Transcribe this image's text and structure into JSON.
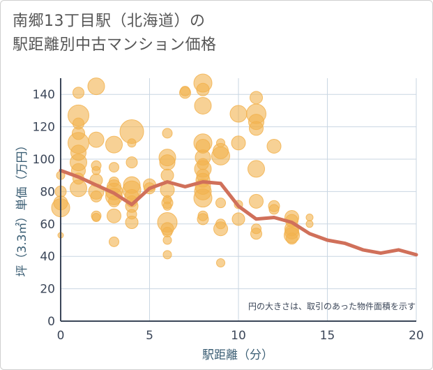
{
  "title_line1": "南郷13丁目駅（北海道）の",
  "title_line2": "駅距離別中古マンション価格",
  "note": "円の大きさは、取引のあった物件面積を示す",
  "colors": {
    "bubble": "#f2b24e",
    "line": "#d0705a",
    "grid": "#c9d6e2",
    "axis": "#3b4658"
  },
  "chart_data": {
    "type": "scatter",
    "xlabel": "駅距離（分）",
    "ylabel": "坪（3.3㎡）単価（万円）",
    "xlim": [
      0,
      20
    ],
    "ylim": [
      0,
      150
    ],
    "x_ticks": [
      0,
      5,
      10,
      15,
      20
    ],
    "y_ticks": [
      0,
      20,
      40,
      60,
      80,
      100,
      120,
      140
    ],
    "grid": true,
    "bubbles": [
      {
        "x": 0,
        "y": 53,
        "r": 4
      },
      {
        "x": 0,
        "y": 70,
        "r": 13
      },
      {
        "x": 0,
        "y": 73,
        "r": 10
      },
      {
        "x": 0,
        "y": 80,
        "r": 8
      },
      {
        "x": 0,
        "y": 90,
        "r": 6
      },
      {
        "x": 1,
        "y": 141,
        "r": 8
      },
      {
        "x": 1,
        "y": 127,
        "r": 15
      },
      {
        "x": 1,
        "y": 122,
        "r": 8
      },
      {
        "x": 1,
        "y": 116,
        "r": 9
      },
      {
        "x": 1,
        "y": 110,
        "r": 15
      },
      {
        "x": 1,
        "y": 104,
        "r": 11
      },
      {
        "x": 1,
        "y": 98,
        "r": 12
      },
      {
        "x": 1,
        "y": 93,
        "r": 10
      },
      {
        "x": 1,
        "y": 88,
        "r": 8
      },
      {
        "x": 1,
        "y": 82,
        "r": 12
      },
      {
        "x": 2,
        "y": 145,
        "r": 12
      },
      {
        "x": 2,
        "y": 112,
        "r": 11
      },
      {
        "x": 2,
        "y": 96,
        "r": 7
      },
      {
        "x": 2,
        "y": 93,
        "r": 6
      },
      {
        "x": 2,
        "y": 87,
        "r": 9
      },
      {
        "x": 2,
        "y": 80,
        "r": 11
      },
      {
        "x": 2,
        "y": 77,
        "r": 8
      },
      {
        "x": 2,
        "y": 65,
        "r": 7
      },
      {
        "x": 2,
        "y": 64,
        "r": 6
      },
      {
        "x": 3,
        "y": 109,
        "r": 12
      },
      {
        "x": 3,
        "y": 95,
        "r": 7
      },
      {
        "x": 3,
        "y": 86,
        "r": 7
      },
      {
        "x": 3,
        "y": 83,
        "r": 10
      },
      {
        "x": 3,
        "y": 80,
        "r": 12
      },
      {
        "x": 3,
        "y": 77,
        "r": 12
      },
      {
        "x": 3,
        "y": 74,
        "r": 8
      },
      {
        "x": 3,
        "y": 65,
        "r": 10
      },
      {
        "x": 3,
        "y": 49,
        "r": 7
      },
      {
        "x": 4,
        "y": 117,
        "r": 17
      },
      {
        "x": 4,
        "y": 110,
        "r": 6
      },
      {
        "x": 4,
        "y": 98,
        "r": 8
      },
      {
        "x": 4,
        "y": 84,
        "r": 12
      },
      {
        "x": 4,
        "y": 81,
        "r": 13
      },
      {
        "x": 4,
        "y": 77,
        "r": 10
      },
      {
        "x": 4,
        "y": 74,
        "r": 8
      },
      {
        "x": 4,
        "y": 71,
        "r": 9
      },
      {
        "x": 4,
        "y": 66,
        "r": 7
      },
      {
        "x": 4,
        "y": 61,
        "r": 9
      },
      {
        "x": 5,
        "y": 84,
        "r": 9
      },
      {
        "x": 5,
        "y": 82,
        "r": 8
      },
      {
        "x": 6,
        "y": 116,
        "r": 7
      },
      {
        "x": 6,
        "y": 101,
        "r": 12
      },
      {
        "x": 6,
        "y": 98,
        "r": 11
      },
      {
        "x": 6,
        "y": 90,
        "r": 9
      },
      {
        "x": 6,
        "y": 81,
        "r": 10
      },
      {
        "x": 6,
        "y": 75,
        "r": 6
      },
      {
        "x": 6,
        "y": 73,
        "r": 8
      },
      {
        "x": 6,
        "y": 71,
        "r": 6
      },
      {
        "x": 6,
        "y": 61,
        "r": 14
      },
      {
        "x": 6,
        "y": 57,
        "r": 9
      },
      {
        "x": 6,
        "y": 55,
        "r": 7
      },
      {
        "x": 6,
        "y": 50,
        "r": 6
      },
      {
        "x": 6,
        "y": 41,
        "r": 6
      },
      {
        "x": 7,
        "y": 142,
        "r": 7
      },
      {
        "x": 7,
        "y": 141,
        "r": 8
      },
      {
        "x": 8,
        "y": 147,
        "r": 13
      },
      {
        "x": 8,
        "y": 143,
        "r": 9
      },
      {
        "x": 8,
        "y": 133,
        "r": 12
      },
      {
        "x": 8,
        "y": 110,
        "r": 13
      },
      {
        "x": 8,
        "y": 108,
        "r": 10
      },
      {
        "x": 8,
        "y": 101,
        "r": 11
      },
      {
        "x": 8,
        "y": 97,
        "r": 8
      },
      {
        "x": 8,
        "y": 94,
        "r": 12
      },
      {
        "x": 8,
        "y": 90,
        "r": 9
      },
      {
        "x": 8,
        "y": 87,
        "r": 10
      },
      {
        "x": 8,
        "y": 83,
        "r": 11
      },
      {
        "x": 8,
        "y": 80,
        "r": 12
      },
      {
        "x": 8,
        "y": 76,
        "r": 13
      },
      {
        "x": 8,
        "y": 65,
        "r": 7
      },
      {
        "x": 8,
        "y": 63,
        "r": 8
      },
      {
        "x": 9,
        "y": 110,
        "r": 6
      },
      {
        "x": 9,
        "y": 105,
        "r": 11
      },
      {
        "x": 9,
        "y": 102,
        "r": 13
      },
      {
        "x": 9,
        "y": 73,
        "r": 7
      },
      {
        "x": 9,
        "y": 60,
        "r": 7
      },
      {
        "x": 9,
        "y": 57,
        "r": 10
      },
      {
        "x": 9,
        "y": 36,
        "r": 6
      },
      {
        "x": 10,
        "y": 128,
        "r": 12
      },
      {
        "x": 10,
        "y": 110,
        "r": 10
      },
      {
        "x": 10,
        "y": 72,
        "r": 6
      },
      {
        "x": 10,
        "y": 63,
        "r": 9
      },
      {
        "x": 11,
        "y": 138,
        "r": 9
      },
      {
        "x": 11,
        "y": 128,
        "r": 14
      },
      {
        "x": 11,
        "y": 123,
        "r": 11
      },
      {
        "x": 11,
        "y": 119,
        "r": 10
      },
      {
        "x": 11,
        "y": 94,
        "r": 12
      },
      {
        "x": 11,
        "y": 74,
        "r": 10
      },
      {
        "x": 11,
        "y": 57,
        "r": 7
      },
      {
        "x": 11,
        "y": 54,
        "r": 8
      },
      {
        "x": 12,
        "y": 108,
        "r": 10
      },
      {
        "x": 12,
        "y": 71,
        "r": 8
      },
      {
        "x": 12,
        "y": 69,
        "r": 7
      },
      {
        "x": 13,
        "y": 64,
        "r": 10
      },
      {
        "x": 13,
        "y": 62,
        "r": 9
      },
      {
        "x": 13,
        "y": 57,
        "r": 10
      },
      {
        "x": 13,
        "y": 55,
        "r": 10
      },
      {
        "x": 13,
        "y": 53,
        "r": 11
      },
      {
        "x": 13,
        "y": 51,
        "r": 8
      },
      {
        "x": 14,
        "y": 64,
        "r": 5
      },
      {
        "x": 14,
        "y": 60,
        "r": 5
      }
    ],
    "series": [
      {
        "type": "line",
        "x": [
          0,
          1,
          2,
          3,
          4,
          5,
          6,
          7,
          8,
          9,
          10,
          11,
          12,
          13,
          14,
          15,
          16,
          17,
          18,
          19,
          20
        ],
        "values": [
          93,
          89,
          84,
          79,
          72,
          82,
          86,
          83,
          86,
          85,
          71,
          63,
          64,
          61,
          54,
          50,
          48,
          44,
          42,
          44,
          41
        ]
      }
    ]
  }
}
